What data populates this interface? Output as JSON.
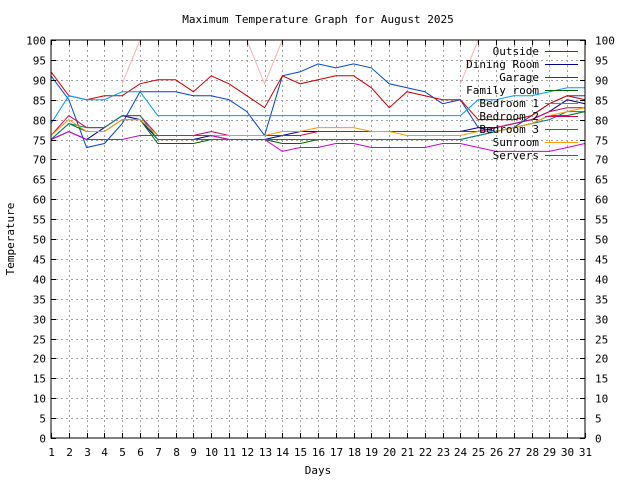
{
  "chart_data": {
    "type": "line",
    "title": "Maximum Temperature Graph for August 2025",
    "xlabel": "Days",
    "ylabel": "Temperature",
    "x": [
      1,
      2,
      3,
      4,
      5,
      6,
      7,
      8,
      9,
      10,
      11,
      12,
      13,
      14,
      15,
      16,
      17,
      18,
      19,
      20,
      21,
      22,
      23,
      24,
      25,
      26,
      27,
      28,
      29,
      30,
      31
    ],
    "xlim": [
      1,
      31
    ],
    "ylim": [
      0,
      100
    ],
    "yticks": [
      0,
      5,
      10,
      15,
      20,
      25,
      30,
      35,
      40,
      45,
      50,
      55,
      60,
      65,
      70,
      75,
      80,
      85,
      90,
      95,
      100
    ],
    "grid": true,
    "legend_position": "top-right",
    "series": [
      {
        "name": "Outside",
        "color": "#0044cc",
        "values": [
          91,
          85,
          73,
          74,
          79,
          87,
          87,
          87,
          86,
          86,
          85,
          82,
          76,
          91,
          92,
          94,
          93,
          94,
          93,
          89,
          88,
          87,
          84,
          85,
          78,
          77,
          78,
          81,
          84,
          86,
          86
        ]
      },
      {
        "name": "Dining Room",
        "color": "#000088",
        "values": [
          75,
          77,
          75,
          78,
          81,
          80,
          75,
          75,
          75,
          76,
          75,
          75,
          75,
          76,
          77,
          77,
          77,
          77,
          77,
          77,
          77,
          77,
          77,
          77,
          78,
          78,
          79,
          80,
          82,
          85,
          84
        ]
      },
      {
        "name": "Garage",
        "color": "#cc0000",
        "values": [
          92,
          86,
          85,
          86,
          86,
          89,
          90,
          90,
          87,
          91,
          89,
          86,
          83,
          91,
          89,
          90,
          91,
          91,
          88,
          83,
          87,
          86,
          85,
          85,
          80,
          80,
          80,
          81,
          84,
          86,
          85
        ]
      },
      {
        "name": "Family room",
        "color": "#006600",
        "values": [
          75,
          79,
          77,
          77,
          80,
          80,
          74,
          74,
          74,
          75,
          75,
          75,
          75,
          74,
          74,
          75,
          75,
          75,
          75,
          75,
          75,
          75,
          75,
          75,
          76,
          77,
          78,
          79,
          81,
          81,
          82
        ]
      },
      {
        "name": "Bedroom 1",
        "color": "#0099ff",
        "values": [
          79,
          86,
          85,
          85,
          87,
          87,
          81,
          81,
          81,
          81,
          81,
          81,
          81,
          81,
          81,
          81,
          81,
          81,
          81,
          81,
          81,
          81,
          81,
          81,
          85,
          85,
          86,
          86,
          87,
          88,
          88
        ]
      },
      {
        "name": "Bedroom 2",
        "color": "#cc0066",
        "values": [
          76,
          81,
          78,
          78,
          81,
          81,
          76,
          76,
          76,
          77,
          76,
          76,
          76,
          76,
          76,
          77,
          77,
          77,
          77,
          77,
          77,
          77,
          77,
          77,
          77,
          78,
          79,
          80,
          82,
          83,
          83
        ]
      },
      {
        "name": "Bedroom 3",
        "color": "#008080",
        "values": [
          75,
          79,
          78,
          78,
          81,
          81,
          75,
          75,
          75,
          75,
          75,
          75,
          75,
          75,
          75,
          75,
          75,
          75,
          75,
          75,
          75,
          75,
          75,
          75,
          76,
          77,
          78,
          79,
          80,
          82,
          82
        ]
      },
      {
        "name": "Sunroom",
        "color": "#ff9900",
        "values": [
          76,
          80,
          77,
          77,
          80,
          80,
          76,
          76,
          76,
          76,
          76,
          76,
          76,
          77,
          77,
          78,
          78,
          78,
          77,
          77,
          76,
          76,
          76,
          76,
          77,
          77,
          78,
          79,
          81,
          82,
          83
        ]
      },
      {
        "name": "Servers",
        "color": "#cc00cc",
        "values": [
          75,
          77,
          75,
          75,
          75,
          76,
          76,
          76,
          76,
          76,
          75,
          75,
          75,
          72,
          73,
          73,
          74,
          74,
          73,
          73,
          73,
          73,
          74,
          74,
          73,
          72,
          72,
          72,
          72,
          73,
          74
        ]
      },
      {
        "name": "",
        "color": "#ffb0b0",
        "values": [
          100,
          100,
          null,
          null,
          89,
          100,
          null,
          null,
          null,
          null,
          100,
          100,
          89,
          100,
          null,
          null,
          null,
          null,
          null,
          null,
          null,
          null,
          null,
          89,
          100,
          null,
          null,
          null,
          null,
          null,
          null
        ]
      }
    ]
  }
}
